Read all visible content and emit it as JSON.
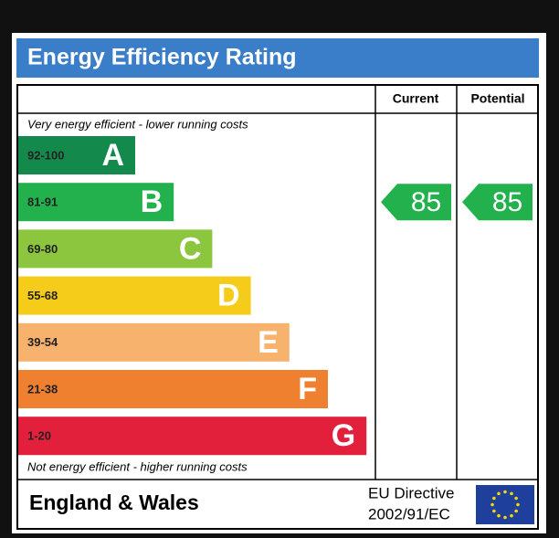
{
  "header": {
    "title": "Energy Efficiency Rating"
  },
  "columns": {
    "current": "Current",
    "potential": "Potential"
  },
  "top_note": "Very energy efficient - lower running costs",
  "bottom_note": "Not energy efficient - higher running costs",
  "bands": [
    {
      "range": "92-100",
      "letter": "A",
      "color": "#138a4c"
    },
    {
      "range": "81-91",
      "letter": "B",
      "color": "#22b14c"
    },
    {
      "range": "69-80",
      "letter": "C",
      "color": "#8cc63e"
    },
    {
      "range": "55-68",
      "letter": "D",
      "color": "#f6cc1a"
    },
    {
      "range": "39-54",
      "letter": "E",
      "color": "#f7b26e"
    },
    {
      "range": "21-38",
      "letter": "F",
      "color": "#ef8030"
    },
    {
      "range": "1-20",
      "letter": "G",
      "color": "#e2203c"
    }
  ],
  "ratings": {
    "current": 85,
    "potential": 85
  },
  "footer": {
    "region": "England & Wales",
    "directive": "EU Directive",
    "directive_code": "2002/91/EC"
  }
}
